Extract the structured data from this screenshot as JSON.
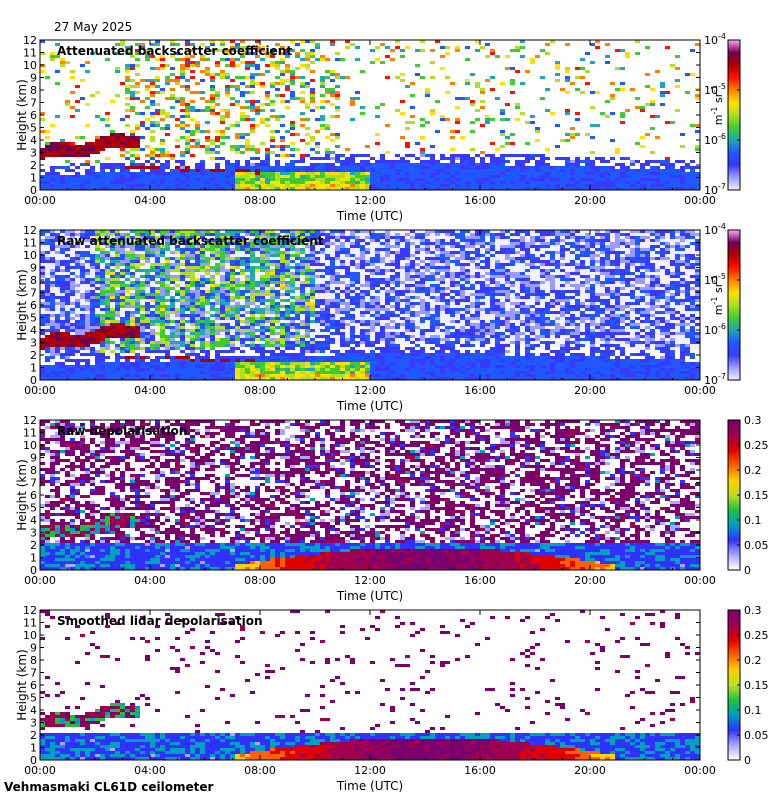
{
  "date": "27 May 2025",
  "footer": "Vehmasmaki CL61D ceilometer",
  "colors": {
    "backscatter_cmap": [
      "#f2f0ff",
      "#9c9cff",
      "#3838ff",
      "#2058ff",
      "#20a8b0",
      "#40cc30",
      "#b0e020",
      "#ffe000",
      "#ff8000",
      "#ff1000",
      "#b00000",
      "#700050",
      "#ffa8ff"
    ],
    "depol_cmap": [
      "#ffffff",
      "#a8a8ff",
      "#3030ff",
      "#00a0c0",
      "#20c040",
      "#c0e020",
      "#ffd000",
      "#ff6000",
      "#e00000",
      "#a00050",
      "#7a0070"
    ]
  },
  "chart_data": [
    {
      "type": "heatmap",
      "title": "Attenuated backscatter coefficient",
      "xlabel": "Time (UTC)",
      "ylabel": "Height (km)",
      "xticks": [
        "00:00",
        "04:00",
        "08:00",
        "12:00",
        "16:00",
        "20:00",
        "00:00"
      ],
      "yticks": [
        "0",
        "1",
        "2",
        "3",
        "4",
        "5",
        "6",
        "7",
        "8",
        "9",
        "10",
        "11",
        "12"
      ],
      "ylim": [
        0,
        12
      ],
      "xlim_hours": [
        0,
        24
      ],
      "colorbar": {
        "scale": "log",
        "tick_labels": [
          "10",
          "10",
          "10",
          "10"
        ],
        "tick_exponents": [
          "-7",
          "-6",
          "-5",
          "-4"
        ],
        "unit": "m",
        "unit_exp": "-1",
        "unit2": " sr",
        "unit2_exp": "-1"
      }
    },
    {
      "type": "heatmap",
      "title": "Raw attenuated backscatter coefficient",
      "xlabel": "Time (UTC)",
      "ylabel": "Height (km)",
      "xticks": [
        "00:00",
        "04:00",
        "08:00",
        "12:00",
        "16:00",
        "20:00",
        "00:00"
      ],
      "yticks": [
        "0",
        "1",
        "2",
        "3",
        "4",
        "5",
        "6",
        "7",
        "8",
        "9",
        "10",
        "11",
        "12"
      ],
      "ylim": [
        0,
        12
      ],
      "xlim_hours": [
        0,
        24
      ],
      "colorbar": {
        "scale": "log",
        "tick_labels": [
          "10",
          "10",
          "10",
          "10"
        ],
        "tick_exponents": [
          "-7",
          "-6",
          "-5",
          "-4"
        ],
        "unit": "m",
        "unit_exp": "-1",
        "unit2": " sr",
        "unit2_exp": "-1"
      }
    },
    {
      "type": "heatmap",
      "title": "Raw depolarisation",
      "xlabel": "Time (UTC)",
      "ylabel": "Height (km)",
      "xticks": [
        "00:00",
        "04:00",
        "08:00",
        "12:00",
        "16:00",
        "20:00",
        "00:00"
      ],
      "yticks": [
        "0",
        "1",
        "2",
        "3",
        "4",
        "5",
        "6",
        "7",
        "8",
        "9",
        "10",
        "11",
        "12"
      ],
      "ylim": [
        0,
        12
      ],
      "xlim_hours": [
        0,
        24
      ],
      "colorbar": {
        "scale": "linear",
        "tick_labels": [
          "0",
          "0.05",
          "0.1",
          "0.15",
          "0.2",
          "0.25",
          "0.3"
        ],
        "range": [
          0,
          0.3
        ]
      }
    },
    {
      "type": "heatmap",
      "title": "Smoothed lidar depolarisation",
      "xlabel": "Time (UTC)",
      "ylabel": "Height (km)",
      "xticks": [
        "00:00",
        "04:00",
        "08:00",
        "12:00",
        "16:00",
        "20:00",
        "00:00"
      ],
      "yticks": [
        "0",
        "1",
        "2",
        "3",
        "4",
        "5",
        "6",
        "7",
        "8",
        "9",
        "10",
        "11",
        "12"
      ],
      "ylim": [
        0,
        12
      ],
      "xlim_hours": [
        0,
        24
      ],
      "colorbar": {
        "scale": "linear",
        "tick_labels": [
          "0",
          "0.05",
          "0.1",
          "0.15",
          "0.2",
          "0.25",
          "0.3"
        ],
        "range": [
          0,
          0.3
        ]
      }
    }
  ]
}
